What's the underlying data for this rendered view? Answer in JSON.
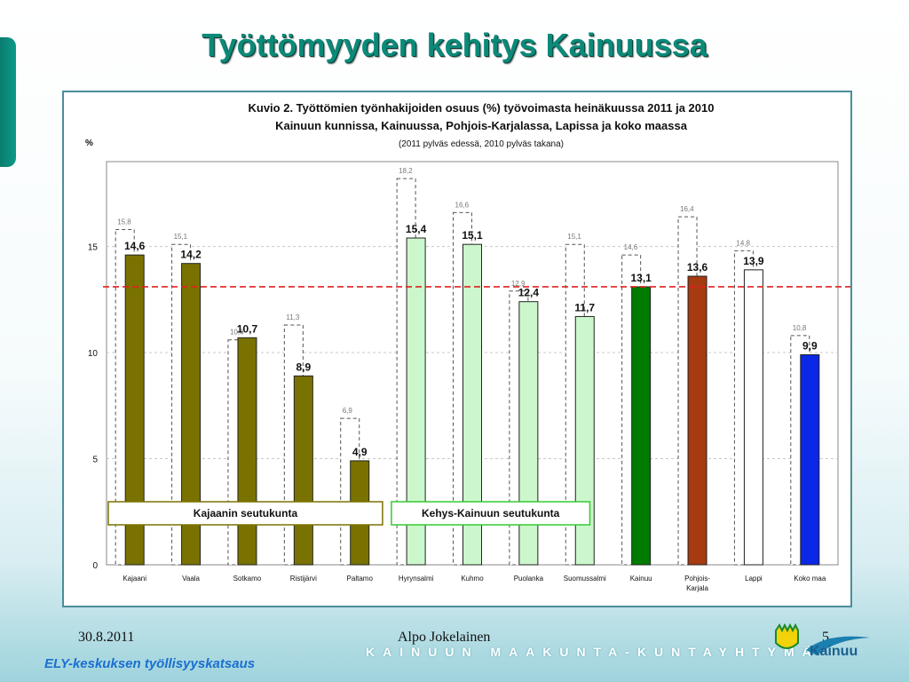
{
  "slide": {
    "title": "Työttömyyden kehitys Kainuussa",
    "date": "30.8.2011",
    "author": "Alpo Jokelainen",
    "page": "5",
    "brand": "KAINUUN MAAKUNTA-KUNTAYHTYMÄ",
    "ely": "ELY-keskuksen työllisyyskatsaus",
    "logo_text": "Kainuu"
  },
  "chart_data": {
    "type": "bar",
    "title_lines": [
      "Kuvio 2. Työttömien työnhakijoiden osuus (%) työvoimasta heinäkuussa 2011 ja 2010",
      "Kainuun kunnissa, Kainuussa, Pohjois-Karjalassa, Lapissa ja koko maassa"
    ],
    "subtitle": "(2011 pylväs edessä, 2010 pylväs takana)",
    "ylabel": "%",
    "ylim": [
      0,
      19
    ],
    "yticks": [
      "0",
      "5",
      "10",
      "15"
    ],
    "reference_line": 13.1,
    "categories": [
      "Kajaani",
      "Vaala",
      "Sotkamo",
      "Ristijärvi",
      "Paltamo",
      "Hyrynsalmi",
      "Kuhmo",
      "Puolanka",
      "Suomussalmi",
      "Kainuu",
      "Pohjois-Karjala",
      "Lappi",
      "Koko maa"
    ],
    "series": [
      {
        "name": "2011",
        "values": [
          14.6,
          14.2,
          10.7,
          8.9,
          4.9,
          15.4,
          15.1,
          12.4,
          11.7,
          13.1,
          13.6,
          13.9,
          9.9
        ],
        "labels": [
          "14,6",
          "14,2",
          "10,7",
          "8,9",
          "4,9",
          "15,4",
          "15,1",
          "12,4",
          "11,7",
          "13,1",
          "13,6",
          "13,9",
          "9,9"
        ]
      },
      {
        "name": "2010",
        "values": [
          15.8,
          15.1,
          10.6,
          11.3,
          6.9,
          18.2,
          16.6,
          12.9,
          15.1,
          14.6,
          16.4,
          14.8,
          10.8
        ],
        "labels": [
          "15,8",
          "15,1",
          "10,6",
          "11,3",
          "6,9",
          "18,2",
          "16,6",
          "12,9",
          "15,1",
          "14,6",
          "16,4",
          "14,8",
          "10,8"
        ]
      }
    ],
    "bar_colors": [
      "#7a7200",
      "#7a7200",
      "#7a7200",
      "#7a7200",
      "#7a7200",
      "#ccf7cc",
      "#ccf7cc",
      "#ccf7cc",
      "#ccf7cc",
      "#007a00",
      "#a63a10",
      "#ffffff",
      "#0a28e6"
    ],
    "group_labels": [
      "Kajaanin seutukunta",
      "Kehys-Kainuun seutukunta"
    ],
    "colors": {
      "reference_line": "#e02020",
      "group1_border": "#7a7200",
      "group2_border": "#33cc33"
    }
  }
}
